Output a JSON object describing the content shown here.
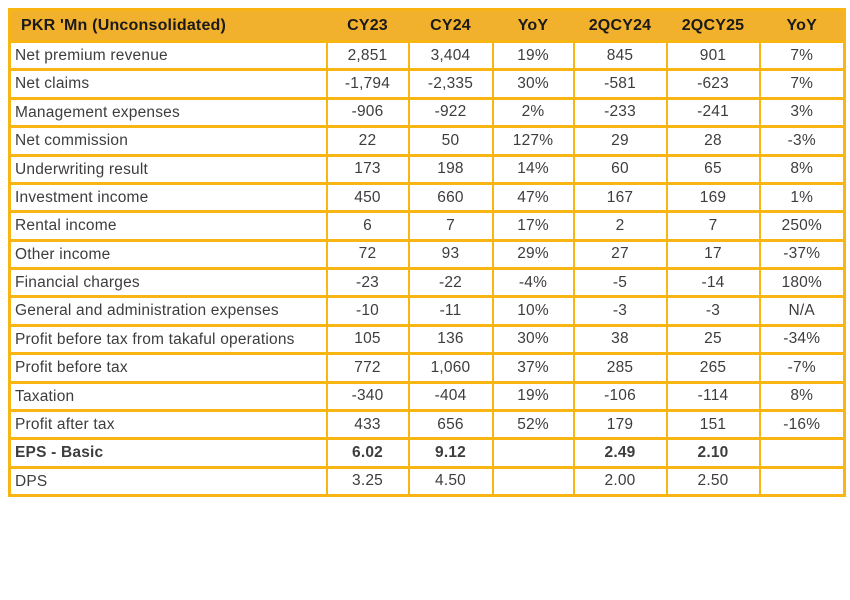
{
  "chart_data": {
    "type": "table",
    "title": "PKR 'Mn (Unconsolidated)",
    "columns": [
      "PKR 'Mn (Unconsolidated)",
      "CY23",
      "CY24",
      "YoY",
      "2QCY24",
      "2QCY25",
      "YoY"
    ],
    "rows": [
      {
        "label": "Net premium revenue",
        "values": [
          "2,851",
          "3,404",
          "19%",
          "845",
          "901",
          "7%"
        ],
        "bold": false
      },
      {
        "label": "Net claims",
        "values": [
          "-1,794",
          "-2,335",
          "30%",
          "-581",
          "-623",
          "7%"
        ],
        "bold": false
      },
      {
        "label": "Management expenses",
        "values": [
          "-906",
          "-922",
          "2%",
          "-233",
          "-241",
          "3%"
        ],
        "bold": false
      },
      {
        "label": "Net commission",
        "values": [
          "22",
          "50",
          "127%",
          "29",
          "28",
          "-3%"
        ],
        "bold": false
      },
      {
        "label": "Underwriting result",
        "values": [
          "173",
          "198",
          "14%",
          "60",
          "65",
          "8%"
        ],
        "bold": false
      },
      {
        "label": "Investment income",
        "values": [
          "450",
          "660",
          "47%",
          "167",
          "169",
          "1%"
        ],
        "bold": false
      },
      {
        "label": "Rental income",
        "values": [
          "6",
          "7",
          "17%",
          "2",
          "7",
          "250%"
        ],
        "bold": false
      },
      {
        "label": "Other income",
        "values": [
          "72",
          "93",
          "29%",
          "27",
          "17",
          "-37%"
        ],
        "bold": false
      },
      {
        "label": "Financial charges",
        "values": [
          "-23",
          "-22",
          "-4%",
          "-5",
          "-14",
          "180%"
        ],
        "bold": false
      },
      {
        "label": "General and administration expenses",
        "values": [
          "-10",
          "-11",
          "10%",
          "-3",
          "-3",
          "N/A"
        ],
        "bold": false
      },
      {
        "label": "Profit before tax from takaful operations",
        "values": [
          "105",
          "136",
          "30%",
          "38",
          "25",
          "-34%"
        ],
        "bold": false
      },
      {
        "label": "Profit before tax",
        "values": [
          "772",
          "1,060",
          "37%",
          "285",
          "265",
          "-7%"
        ],
        "bold": false
      },
      {
        "label": "Taxation",
        "values": [
          "-340",
          "-404",
          "19%",
          "-106",
          "-114",
          "8%"
        ],
        "bold": false
      },
      {
        "label": "Profit after tax",
        "values": [
          "433",
          "656",
          "52%",
          "179",
          "151",
          "-16%"
        ],
        "bold": false
      },
      {
        "label": "EPS - Basic",
        "values": [
          "6.02",
          "9.12",
          "",
          "2.49",
          "2.10",
          ""
        ],
        "bold": true
      },
      {
        "label": "DPS",
        "values": [
          "3.25",
          "4.50",
          "",
          "2.00",
          "2.50",
          ""
        ],
        "bold": false
      }
    ],
    "layout": {
      "grid": true,
      "header_row_highlighted": true,
      "numeric_alignment": "center",
      "label_alignment": "left"
    }
  },
  "colors": {
    "gold_header": "#F2B12D",
    "gold_border": "#F8B514",
    "header_text": "#1A1A1A",
    "body_text": "#3D3D3D"
  }
}
